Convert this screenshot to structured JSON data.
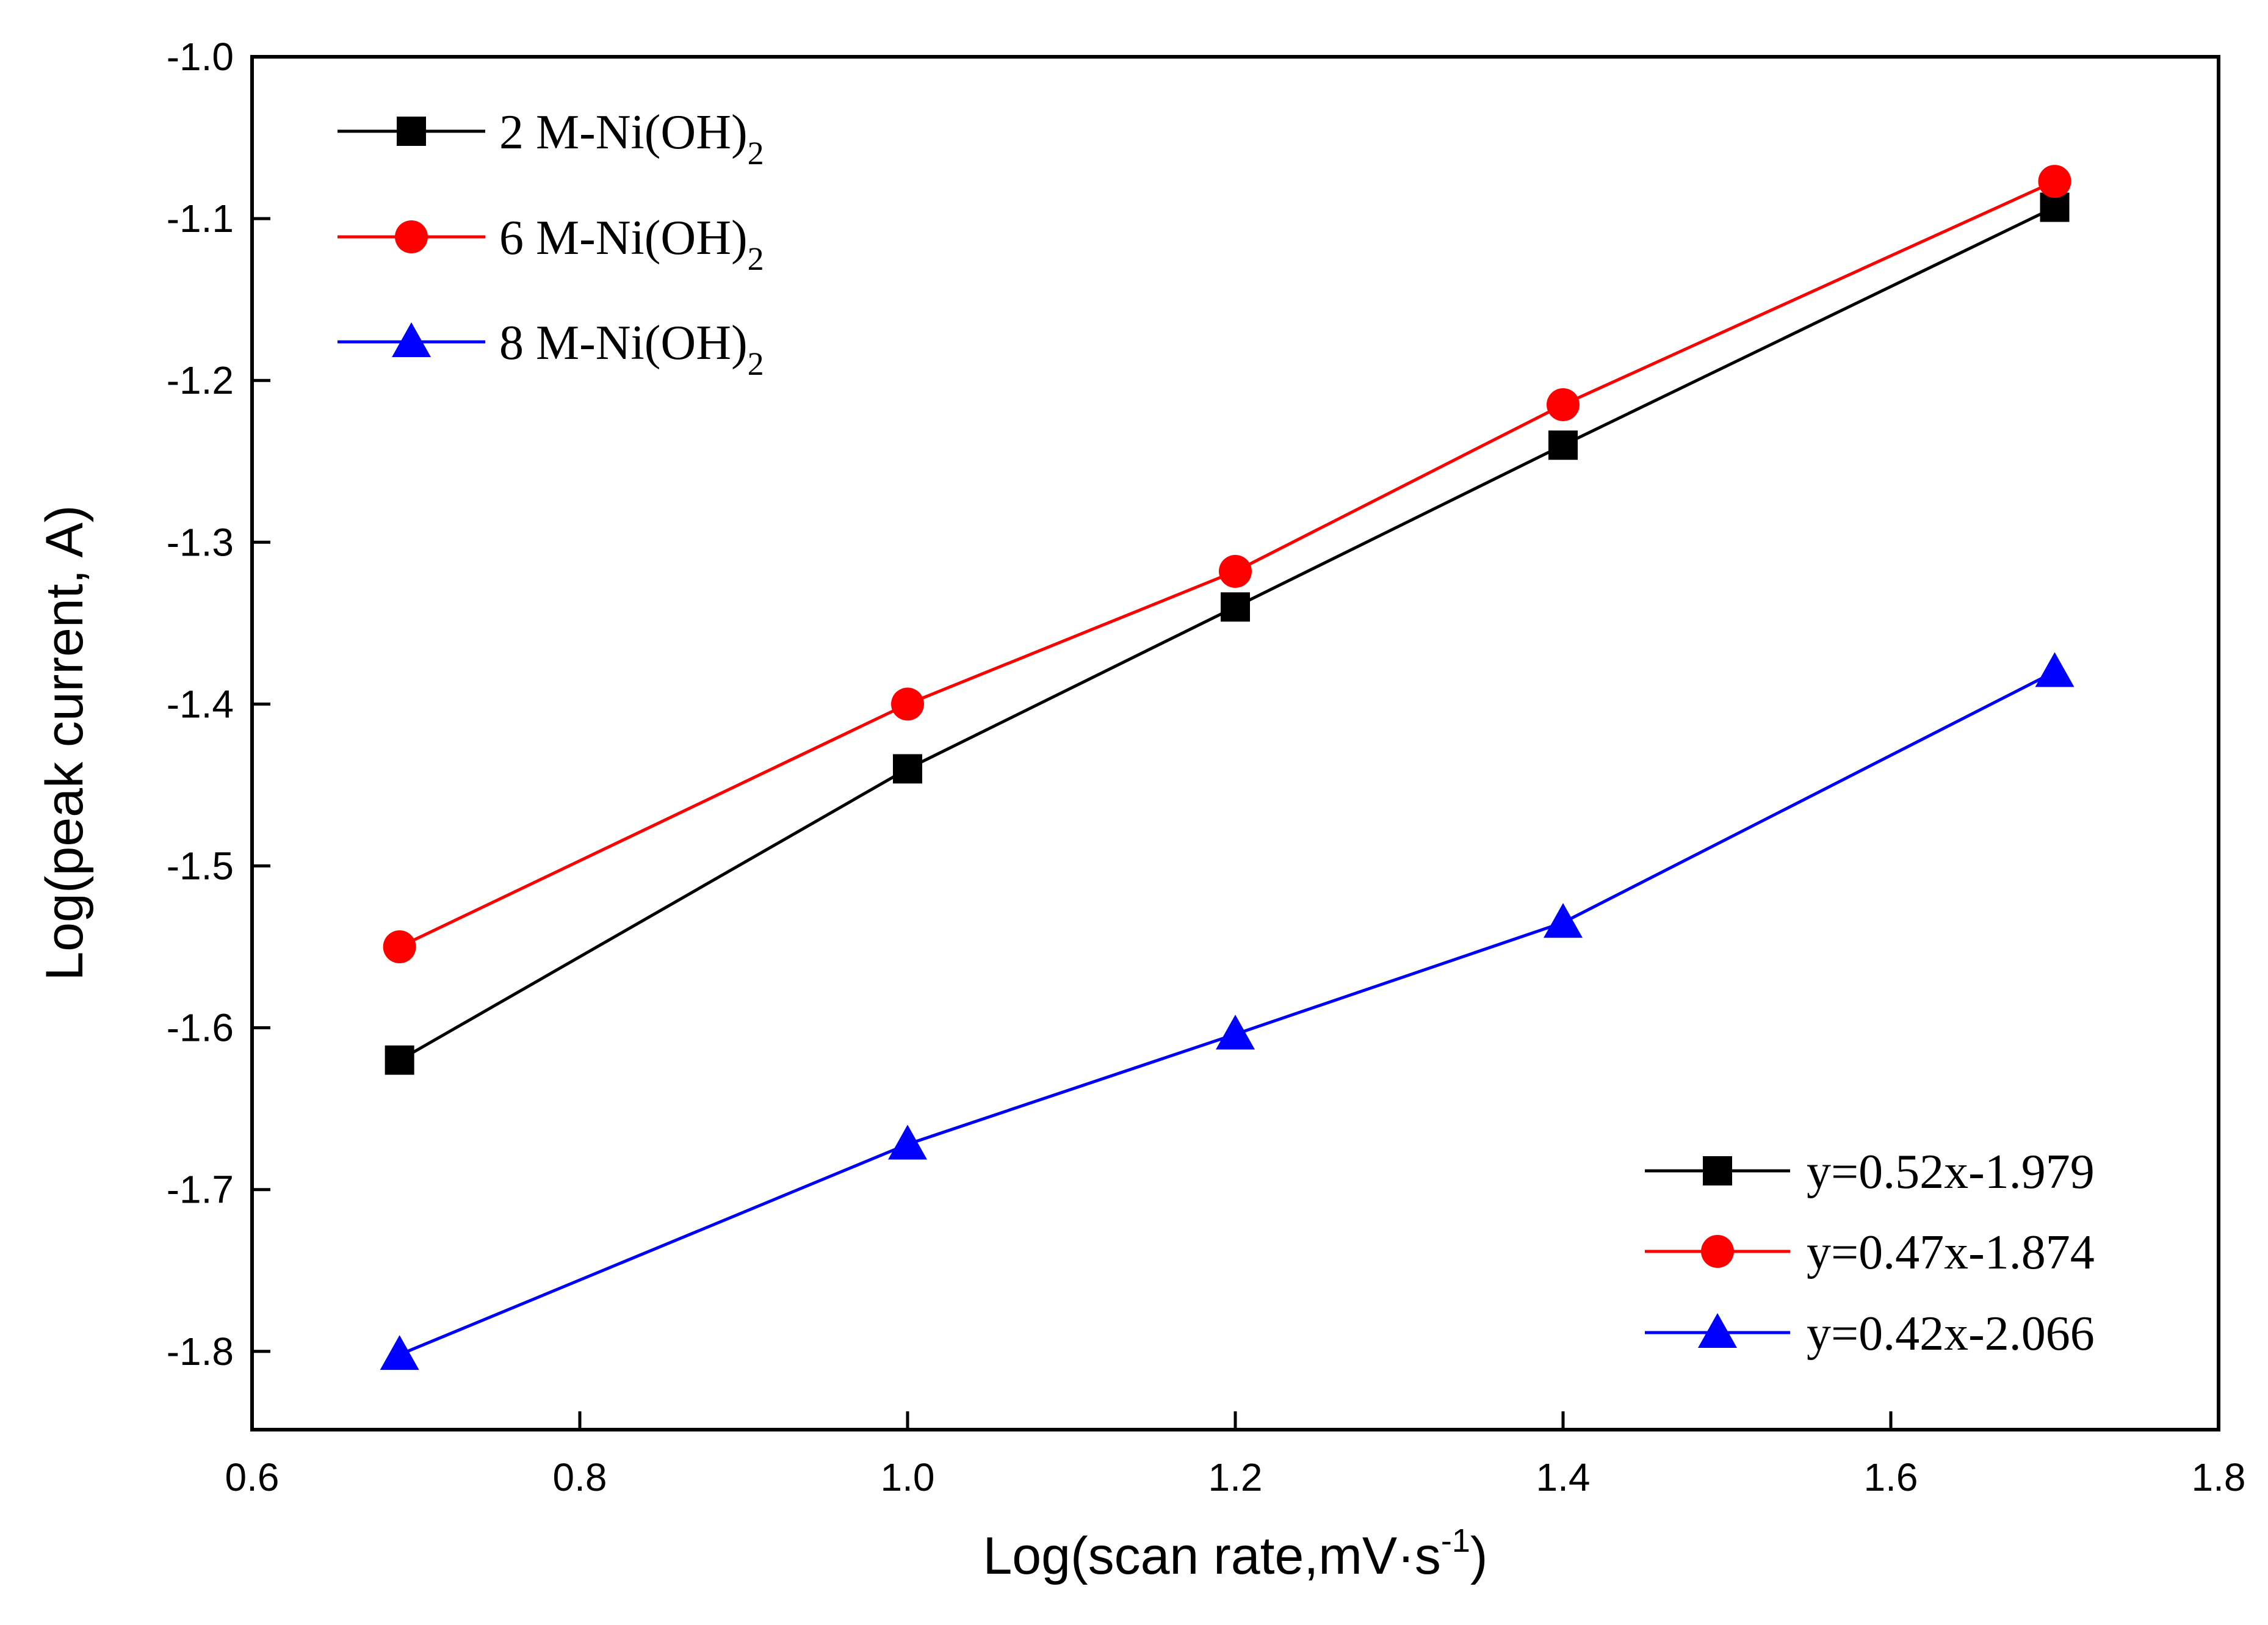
{
  "chart_data": {
    "type": "line",
    "xlabel": "Log(scan rate,mV·s",
    "xlabel_sup": "-1",
    "xlabel_close": ")",
    "ylabel": "Log(peak current, A)",
    "xlim": [
      0.6,
      1.8
    ],
    "ylim": [
      -1.85,
      -1.0
    ],
    "x_ticks": [
      "0.6",
      "0.8",
      "1.0",
      "1.2",
      "1.4",
      "1.6",
      "1.8"
    ],
    "y_ticks": [
      "-1.0",
      "-1.1",
      "-1.2",
      "-1.3",
      "-1.4",
      "-1.5",
      "-1.6",
      "-1.7",
      "-1.8"
    ],
    "x": [
      0.69,
      1.0,
      1.2,
      1.4,
      1.7
    ],
    "grid": false,
    "series": [
      {
        "name": "2 M-Ni(OH)",
        "name_sub": "2",
        "marker": "square",
        "color": "#000000",
        "values": [
          -1.62,
          -1.44,
          -1.34,
          -1.24,
          -1.093
        ]
      },
      {
        "name": "6 M-Ni(OH)",
        "name_sub": "2",
        "marker": "circle",
        "color": "#ff0000",
        "values": [
          -1.55,
          -1.4,
          -1.318,
          -1.215,
          -1.077
        ]
      },
      {
        "name": "8 M-Ni(OH)",
        "name_sub": "2",
        "marker": "triangle",
        "color": "#0000ff",
        "values": [
          -1.802,
          -1.672,
          -1.604,
          -1.535,
          -1.38
        ]
      }
    ],
    "fit_legend": [
      {
        "label": "y=0.52x-1.979",
        "marker": "square",
        "color": "#000000"
      },
      {
        "label": "y=0.47x-1.874",
        "marker": "circle",
        "color": "#ff0000"
      },
      {
        "label": "y=0.42x-2.066",
        "marker": "triangle",
        "color": "#0000ff"
      }
    ],
    "legend_placement": "top-left",
    "fit_legend_placement": "bottom-right"
  }
}
